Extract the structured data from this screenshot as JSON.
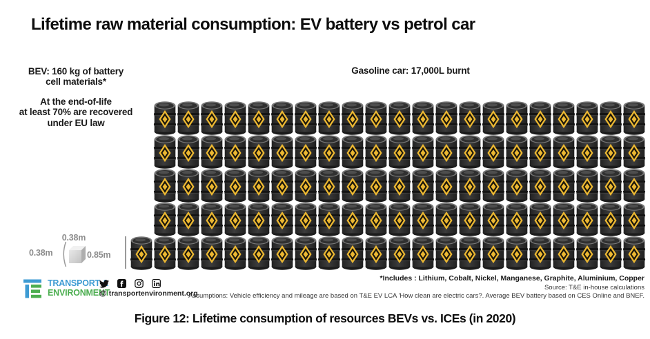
{
  "title": "Lifetime raw material consumption: EV battery vs petrol car",
  "bev": {
    "label_line1": "BEV: 160 kg of battery",
    "label_line2": "cell materials*",
    "eol_line1": "At the end-of-life",
    "eol_line2": "at least 70% are recovered",
    "eol_line3": "under EU law",
    "cube_width_label": "0.38m",
    "cube_height_label": "0.38m"
  },
  "gasoline": {
    "label": "Gasoline car: 17,000L burnt",
    "barrel_height_label": "0.85m",
    "barrel_rows": [
      21,
      21,
      21,
      21,
      22
    ],
    "total_barrels": 106
  },
  "footnotes": {
    "includes": "*Includes : Lithium, Cobalt, Nickel, Manganese, Graphite, Aluminium, Copper",
    "source": "Source: T&E in-house calculations",
    "assumptions": "Assumptions: Vehicle efficiency and mileage are based on T&E EV LCA 'How clean are electric cars?. Average BEV battery based on CES Online and BNEF."
  },
  "footer": {
    "logo_line1": "TRANSPORT &",
    "logo_line2": "ENVIRONMENT",
    "website": "transportenvironment.org",
    "at_symbol": "@",
    "social_icons": [
      "twitter",
      "facebook",
      "instagram",
      "linkedin"
    ]
  },
  "caption": "Figure 12: Lifetime consumption of resources BEVs vs. ICEs (in 2020)",
  "colors": {
    "logo_blue": "#3e9bd3",
    "logo_green": "#4cae50",
    "barrel_body": "#2d2d2d",
    "barrel_diamond": "#ecb832",
    "measure_gray": "#8d8d8d"
  },
  "chart_data": {
    "type": "bar",
    "variant": "pictogram-comparison",
    "title": "Lifetime raw material consumption: EV battery vs petrol car",
    "categories": [
      "BEV battery",
      "Gasoline car"
    ],
    "series": [
      {
        "name": "Lifetime raw material consumption",
        "values": [
          160,
          17000
        ],
        "units": [
          "kg of battery cell materials",
          "L of petrol burnt"
        ]
      }
    ],
    "pictogram": {
      "bev_icon": "cube 0.38m x 0.38m",
      "bev_recovery_note": "At the end-of-life at least 70% are recovered under EU law",
      "gasoline_icon": "oil barrel 0.85m tall",
      "barrel_rows": [
        21,
        21,
        21,
        21,
        22
      ],
      "total_barrels": 106
    },
    "annotations": [
      "BEV: 160 kg of battery cell materials*",
      "Gasoline car: 17,000L burnt",
      "*Includes : Lithium, Cobalt, Nickel, Manganese, Graphite, Aluminium, Copper"
    ]
  }
}
